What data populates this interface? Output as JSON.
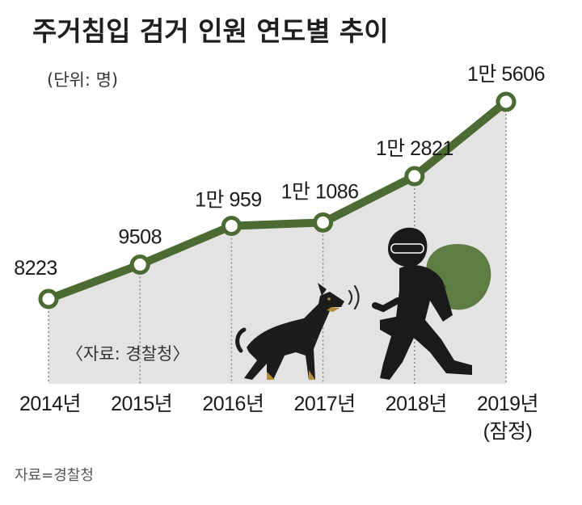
{
  "title": "주거침입 검거 인원 연도별 추이",
  "unit_note": "(단위: 명)",
  "source_inside": "〈자료: 경찰청〉",
  "footer_source": "자료=경찰청",
  "colors": {
    "line": "#4c6b32",
    "area": "#e3e3e3",
    "marker_fill": "#ffffff"
  },
  "icons": [
    "doberman-dog-icon",
    "burglar-with-sack-icon",
    "bark-sound-waves-icon"
  ],
  "chart_data": {
    "type": "line",
    "title": "주거침입 검거 인원 연도별 추이",
    "ylabel": "(단위: 명)",
    "categories": [
      "2014년",
      "2015년",
      "2016년",
      "2017년",
      "2018년",
      "2019년"
    ],
    "category_notes": [
      "",
      "",
      "",
      "",
      "",
      "(잠정)"
    ],
    "values": [
      8223,
      9508,
      10959,
      11086,
      12821,
      15606
    ],
    "value_labels": [
      "8223",
      "9508",
      "1만 959",
      "1만 1086",
      "1만 2821",
      "1만 5606"
    ],
    "ylim": [
      6200,
      16000
    ],
    "grid": false,
    "area_fill": true,
    "markers": true
  }
}
